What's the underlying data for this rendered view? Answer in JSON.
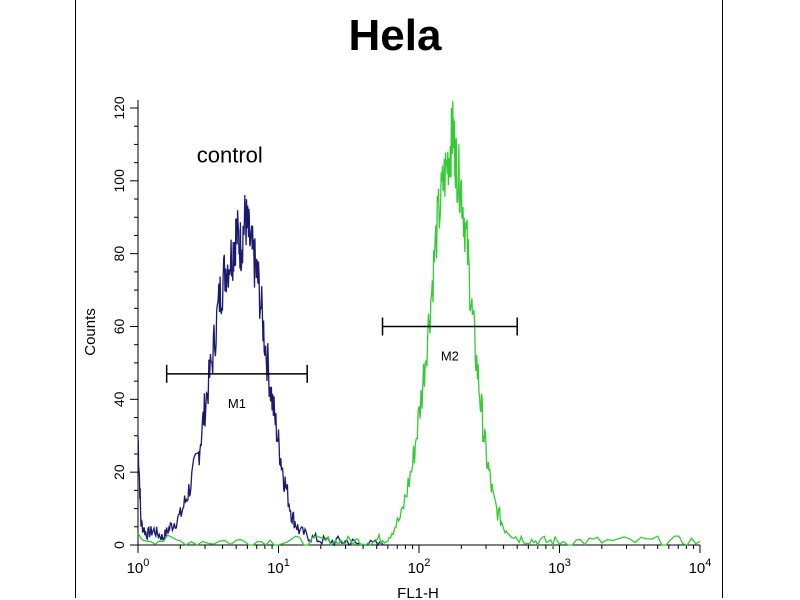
{
  "chart_data": {
    "type": "line",
    "title": "Hela",
    "xlabel": "FL1-H",
    "ylabel": "Counts",
    "x_scale": "log",
    "xlim": [
      1,
      10000
    ],
    "ylim": [
      0,
      120
    ],
    "yticks": [
      0,
      20,
      40,
      60,
      80,
      100,
      120
    ],
    "xticks": [
      {
        "base": "10",
        "exp": "0"
      },
      {
        "base": "10",
        "exp": "1"
      },
      {
        "base": "10",
        "exp": "2"
      },
      {
        "base": "10",
        "exp": "3"
      },
      {
        "base": "10",
        "exp": "4"
      }
    ],
    "annotations": [
      {
        "text": "control",
        "x": 4.5,
        "y": 105
      }
    ],
    "gates": [
      {
        "label": "M1",
        "x_start": 1.6,
        "x_end": 16,
        "y": 47
      },
      {
        "label": "M2",
        "x_start": 55,
        "x_end": 500,
        "y": 60
      }
    ],
    "series": [
      {
        "color": "#1a1a6e",
        "points": [
          [
            1.0,
            30
          ],
          [
            1.05,
            6
          ],
          [
            1.15,
            3
          ],
          [
            1.3,
            4
          ],
          [
            1.5,
            2
          ],
          [
            1.7,
            5
          ],
          [
            2.0,
            8
          ],
          [
            2.3,
            15
          ],
          [
            2.7,
            25
          ],
          [
            3.0,
            38
          ],
          [
            3.4,
            52
          ],
          [
            3.8,
            68
          ],
          [
            4.2,
            76
          ],
          [
            4.7,
            80
          ],
          [
            5.0,
            86
          ],
          [
            5.4,
            82
          ],
          [
            5.8,
            90
          ],
          [
            6.2,
            84
          ],
          [
            6.7,
            78
          ],
          [
            7.2,
            72
          ],
          [
            8.0,
            56
          ],
          [
            9.0,
            40
          ],
          [
            10.0,
            28
          ],
          [
            11.0,
            18
          ],
          [
            12.5,
            8
          ],
          [
            14.0,
            4
          ],
          [
            17.0,
            2
          ],
          [
            22.0,
            1
          ],
          [
            30.0,
            1
          ],
          [
            40.0,
            0
          ],
          [
            60.0,
            0
          ]
        ]
      },
      {
        "color": "#33cc33",
        "points": [
          [
            1.0,
            2
          ],
          [
            2.0,
            1
          ],
          [
            5.0,
            1
          ],
          [
            10.0,
            1
          ],
          [
            20.0,
            1
          ],
          [
            30.0,
            1
          ],
          [
            45.0,
            1
          ],
          [
            60.0,
            2
          ],
          [
            75.0,
            8
          ],
          [
            90.0,
            22
          ],
          [
            105.0,
            42
          ],
          [
            120.0,
            65
          ],
          [
            135.0,
            88
          ],
          [
            150.0,
            100
          ],
          [
            165.0,
            108
          ],
          [
            175.0,
            114
          ],
          [
            185.0,
            104
          ],
          [
            200.0,
            98
          ],
          [
            220.0,
            82
          ],
          [
            240.0,
            62
          ],
          [
            270.0,
            42
          ],
          [
            300.0,
            25
          ],
          [
            340.0,
            12
          ],
          [
            400.0,
            5
          ],
          [
            500.0,
            2
          ],
          [
            700.0,
            1
          ],
          [
            1000.0,
            1
          ],
          [
            2000.0,
            1
          ],
          [
            5000.0,
            1
          ],
          [
            10000.0,
            1
          ]
        ]
      }
    ]
  }
}
